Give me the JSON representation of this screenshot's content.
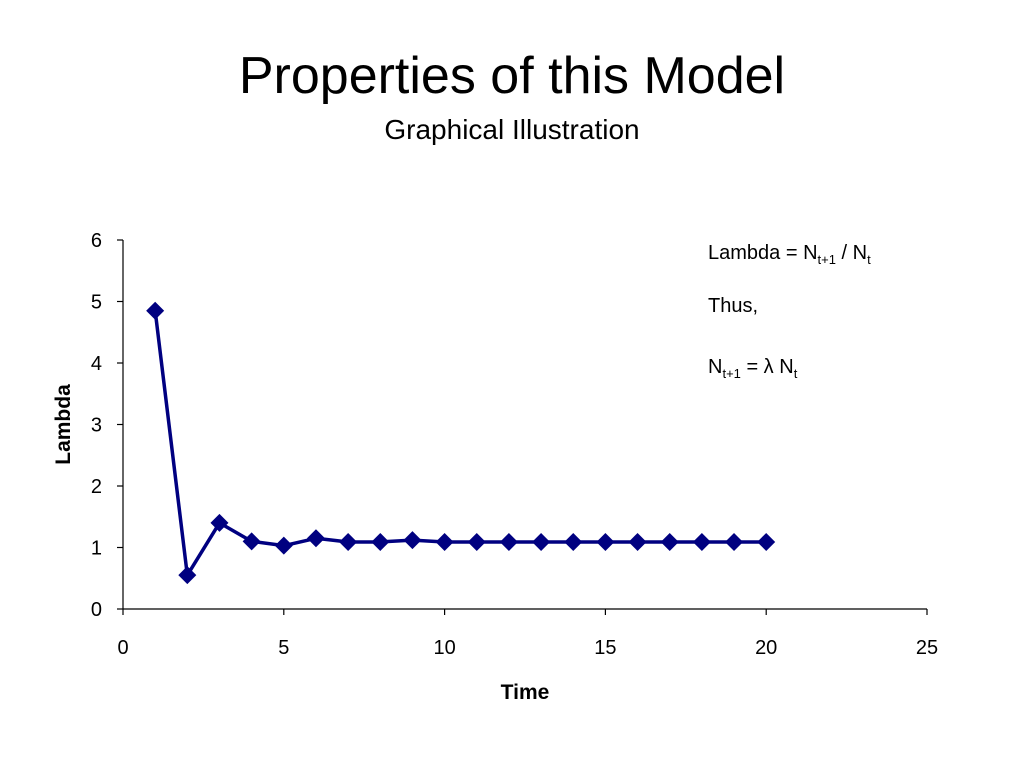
{
  "slide": {
    "title": "Properties of this Model",
    "subtitle": "Graphical Illustration"
  },
  "annotation": {
    "line1_prefix": "Lambda = N",
    "line1_sub1": "t+1",
    "line1_mid": " / N",
    "line1_sub2": "t",
    "line2": "Thus,",
    "line3_prefix": "N",
    "line3_sub1": "t+1",
    "line3_mid": " = λ N",
    "line3_sub2": "t"
  },
  "chart_data": {
    "type": "line",
    "title": "",
    "xlabel": "Time",
    "ylabel": "Lambda",
    "xlim": [
      0,
      25
    ],
    "ylim": [
      0,
      6
    ],
    "xticks": [
      0,
      5,
      10,
      15,
      20,
      25
    ],
    "yticks": [
      0,
      1,
      2,
      3,
      4,
      5,
      6
    ],
    "grid": false,
    "series": [
      {
        "marker": "diamond",
        "color": "#000080",
        "x": [
          1,
          2,
          3,
          4,
          5,
          6,
          7,
          8,
          9,
          10,
          11,
          12,
          13,
          14,
          15,
          16,
          17,
          18,
          19,
          20
        ],
        "y": [
          4.85,
          0.55,
          1.4,
          1.1,
          1.03,
          1.15,
          1.09,
          1.09,
          1.12,
          1.09,
          1.09,
          1.09,
          1.09,
          1.09,
          1.09,
          1.09,
          1.09,
          1.09,
          1.09,
          1.09
        ]
      }
    ]
  }
}
